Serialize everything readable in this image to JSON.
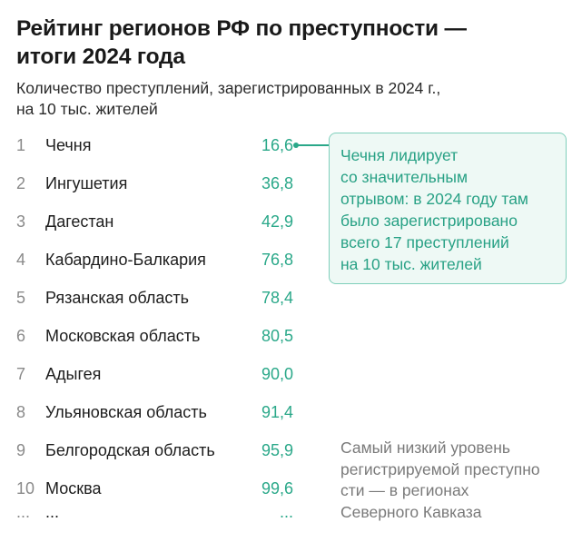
{
  "title": "Рейтинг регионов РФ по преступности — итоги 2024 года",
  "subtitle": "Количество преступлений, зарегистрированных в 2024 г., на 10 тыс. жителей",
  "callout": {
    "lines": [
      "Чечня лидирует",
      "со значительным",
      "отрывом: в 2024 году там",
      "было зарегистрировано",
      "всего 17 преступлений",
      "на 10 тыс. жителей"
    ]
  },
  "note": {
    "lines": [
      "Самый низкий уровень",
      "регистрируемой преступно",
      "сти — в регионах",
      "Северного Кавказа"
    ]
  },
  "continuation": {
    "rank": "...",
    "region": "...",
    "value": "..."
  },
  "colors": {
    "accent": "#2aa889",
    "callout_bg": "#eef9f5",
    "callout_border": "#7fcfbb",
    "muted": "#7a7a7a"
  },
  "chart_data": {
    "type": "table",
    "title": "Рейтинг регионов РФ по преступности — итоги 2024 года",
    "subtitle": "Количество преступлений, зарегистрированных в 2024 г., на 10 тыс. жителей",
    "rows": [
      {
        "rank": "1",
        "region": "Чечня",
        "value": "16,6"
      },
      {
        "rank": "2",
        "region": "Ингушетия",
        "value": "36,8"
      },
      {
        "rank": "3",
        "region": "Дагестан",
        "value": "42,9"
      },
      {
        "rank": "4",
        "region": "Кабардино-Балкария",
        "value": "76,8"
      },
      {
        "rank": "5",
        "region": "Рязанская область",
        "value": "78,4"
      },
      {
        "rank": "6",
        "region": "Московская область",
        "value": "80,5"
      },
      {
        "rank": "7",
        "region": "Адыгея",
        "value": "90,0"
      },
      {
        "rank": "8",
        "region": "Ульяновская область",
        "value": "91,4"
      },
      {
        "rank": "9",
        "region": "Белгородская область",
        "value": "95,9"
      },
      {
        "rank": "10",
        "region": "Москва",
        "value": "99,6"
      }
    ]
  }
}
